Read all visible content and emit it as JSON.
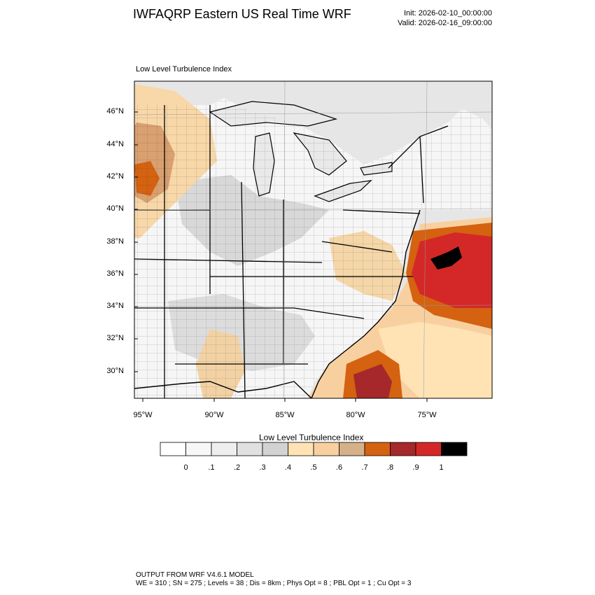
{
  "header": {
    "title": "IWFAQRP Eastern US Real Time WRF",
    "init": "Init: 2026-02-10_00:00:00",
    "valid": "Valid: 2026-02-16_09:00:00"
  },
  "map": {
    "field_label": "Low Level Turbulence Index",
    "lat_ticks": [
      "46°N",
      "44°N",
      "42°N",
      "40°N",
      "38°N",
      "36°N",
      "34°N",
      "32°N",
      "30°N"
    ],
    "lon_ticks": [
      "95°W",
      "90°W",
      "85°W",
      "80°W",
      "75°W"
    ]
  },
  "colorbar": {
    "title": "Low Level Turbulence Index",
    "levels": [
      "0",
      ".1",
      ".2",
      ".3",
      ".4",
      ".5",
      ".6",
      ".7",
      ".8",
      ".9",
      "1"
    ],
    "colors": [
      "#ffffff",
      "#f7f7f7",
      "#eeeeee",
      "#e0e0e0",
      "#d2d2d2",
      "#ffe3b4",
      "#f8d0a0",
      "#d6b08a",
      "#d46210",
      "#a6282a",
      "#d42828",
      "#000000"
    ]
  },
  "footer": {
    "line1": "OUTPUT FROM WRF V4.6.1 MODEL",
    "line2": "WE = 310 ; SN = 275 ; Levels = 38 ; Dis = 8km ; Phys Opt = 8 ; PBL Opt = 1 ; Cu Opt = 3"
  }
}
